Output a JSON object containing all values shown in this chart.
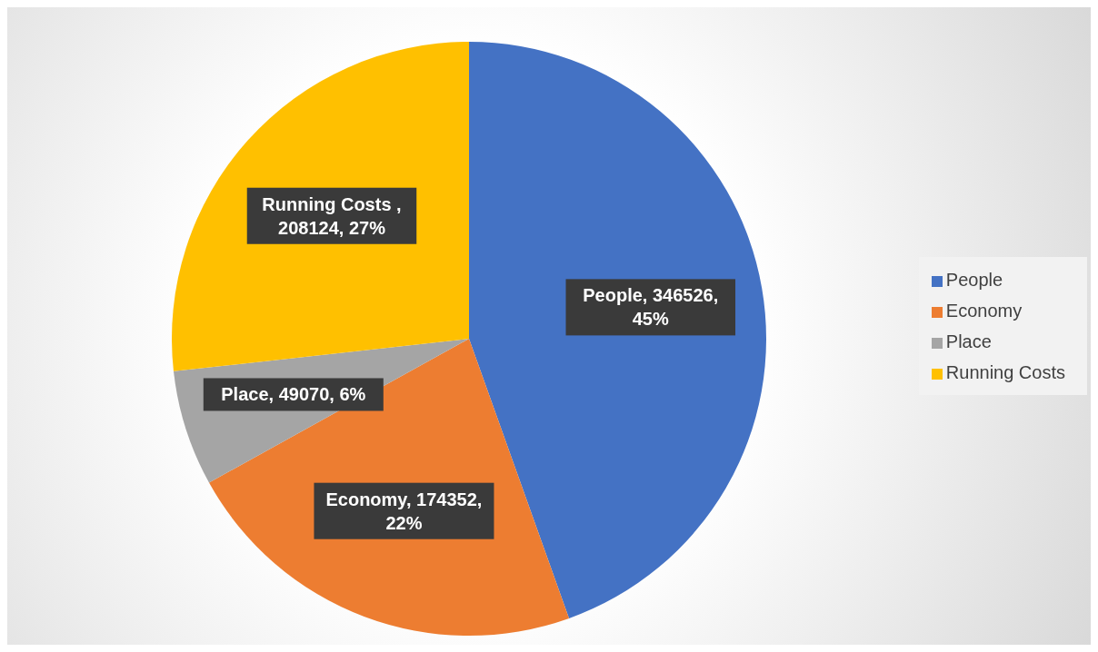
{
  "chart_data": {
    "type": "pie",
    "categories": [
      "People",
      "Economy",
      "Place",
      "Running Costs"
    ],
    "values": [
      346526,
      174352,
      49070,
      208124
    ],
    "colors": [
      "#4472c4",
      "#ed7d31",
      "#a5a5a5",
      "#ffc000"
    ],
    "value_labels": [
      "People, 346526, 45%",
      "Economy, 174352, 22%",
      "Place, 49070, 6%",
      "Running Costs , 208124, 27%"
    ],
    "legend": "right"
  }
}
